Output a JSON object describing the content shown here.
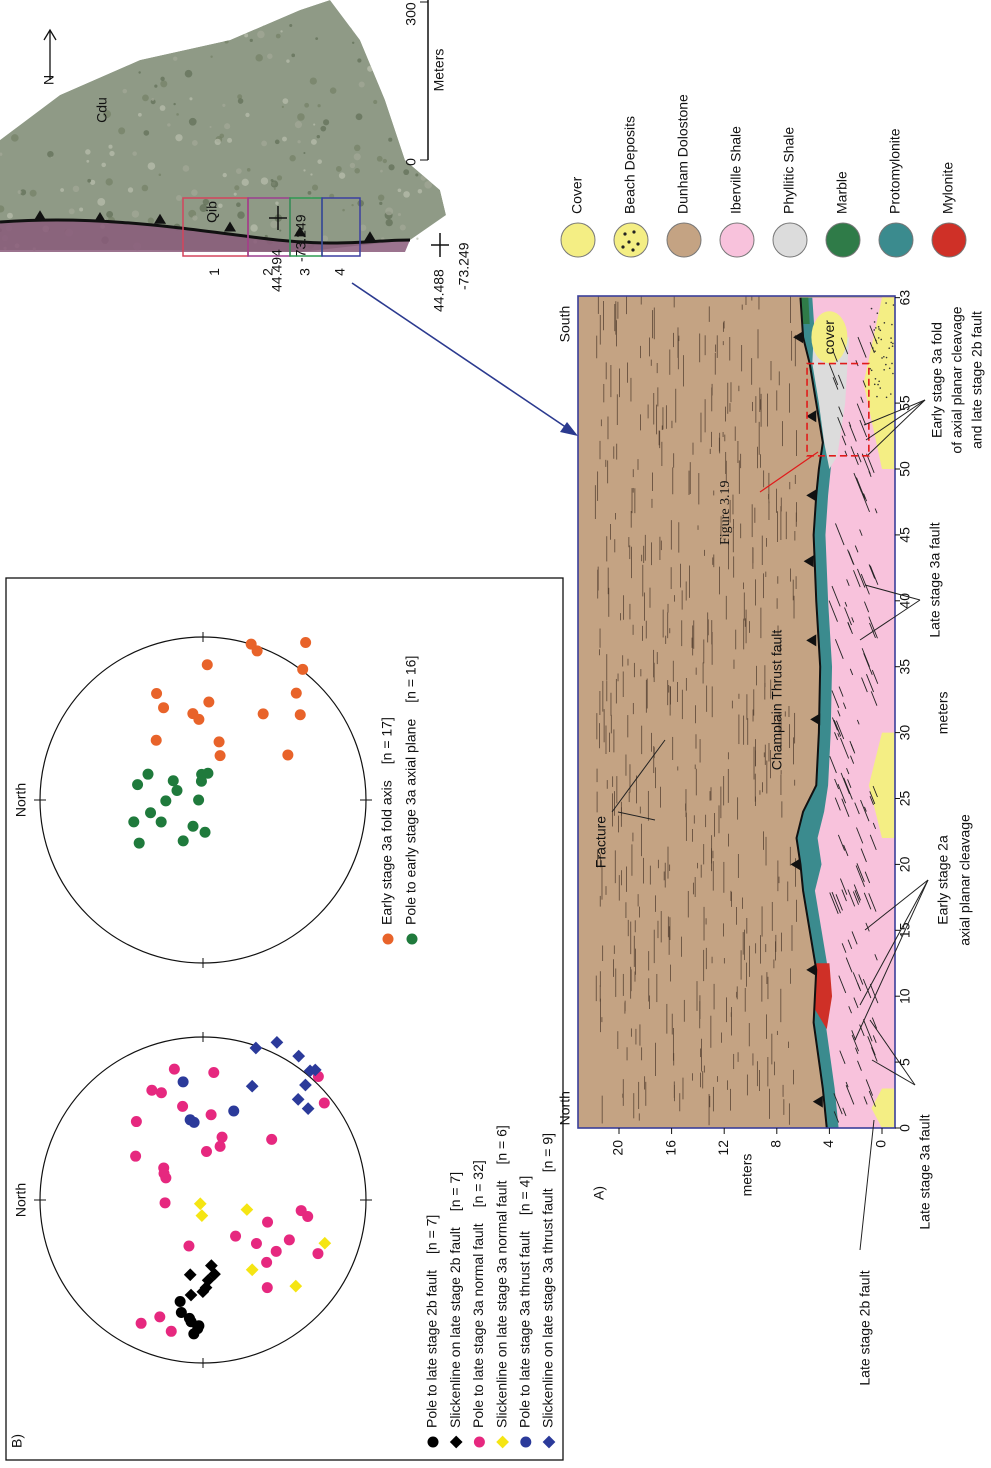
{
  "map": {
    "north": "N",
    "units": [
      "Cdu",
      "Qib"
    ],
    "scale": {
      "zero": "0",
      "max": "300",
      "unit": "Meters"
    },
    "coordinates": [
      {
        "lat": "44.494",
        "lon": "-73.249"
      },
      {
        "lat": "44.488",
        "lon": "-73.249"
      }
    ],
    "boxes": [
      "1",
      "2",
      "3",
      "4"
    ]
  },
  "stereonets": {
    "label": "B)",
    "north": "North",
    "left_legend": [
      {
        "text": "Pole to late stage 2b fault",
        "n": "[n = 7]"
      },
      {
        "text": "Slickenline on late stage 2b fault",
        "n": "[n = 7]"
      },
      {
        "text": "Pole to late stage 3a normal fault",
        "n": "[n = 32]"
      },
      {
        "text": "Slickenline on late stage 3a normal fault",
        "n": "[n = 6]"
      },
      {
        "text": "Pole to late stage 3a thrust fault",
        "n": "[n = 4]"
      },
      {
        "text": "Slickenline on late stage 3a thrust fault",
        "n": "[n = 9]"
      }
    ],
    "right_legend": [
      {
        "text": "Early stage 3a fold axis",
        "n": "[n = 17]"
      },
      {
        "text": "Pole to early stage 3a axial plane",
        "n": "[n = 16]"
      }
    ]
  },
  "section": {
    "label": "A)",
    "left_end": "North",
    "right_end": "South",
    "y_axis_title": "meters",
    "y_ticks": [
      20,
      16,
      12,
      8,
      4,
      0
    ],
    "x_axis_title": "meters",
    "x_ticks": [
      0,
      5,
      10,
      15,
      20,
      25,
      30,
      35,
      40,
      45,
      50,
      55,
      63
    ],
    "cover": "cover",
    "fracture": "Fracture",
    "thrust": "Champlain Thrust fault",
    "figure_ref": "Figure 3.19",
    "annotations": {
      "late_2b": "Late stage 2b fault",
      "late_3a_left": "Late stage 3a fault",
      "early_2a": [
        "Early stage 2a",
        "axial planar cleavage"
      ],
      "late_3a_right": "Late stage 3a fault",
      "early_3a": [
        "Early stage 3a fold",
        "of axial planar cleavage",
        "and late stage 2b fault"
      ]
    }
  },
  "legend": [
    "Cover",
    "Beach Deposits",
    "Dunham Dolostone",
    "Iberville Shale",
    "Phyllitic Shale",
    "Marble",
    "Protomylonite",
    "Mylonite"
  ]
}
